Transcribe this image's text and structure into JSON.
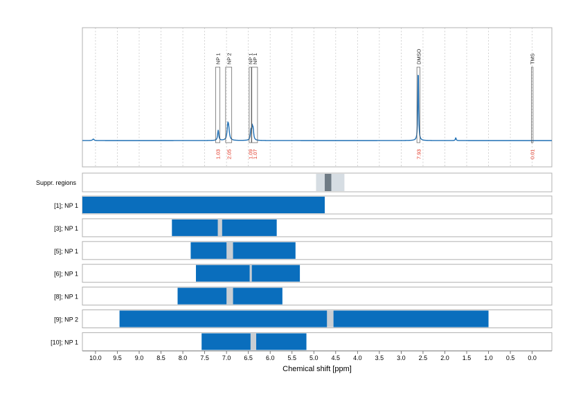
{
  "chart_data": {
    "type": "nmr-spectrum-with-range-bars",
    "xlabel": "Chemical shift [ppm]",
    "xlim": [
      10.3,
      -0.45
    ],
    "x_ticks": [
      "10.0",
      "9.5",
      "9.0",
      "8.5",
      "8.0",
      "7.5",
      "7.0",
      "6.5",
      "6.0",
      "5.5",
      "5.0",
      "4.5",
      "4.0",
      "3.5",
      "3.0",
      "2.5",
      "2.0",
      "1.5",
      "1.0",
      "0.5",
      "0.0"
    ],
    "x_tick_values": [
      10.0,
      9.5,
      9.0,
      8.5,
      8.0,
      7.5,
      7.0,
      6.5,
      6.0,
      5.5,
      5.0,
      4.5,
      4.0,
      3.5,
      3.0,
      2.5,
      2.0,
      1.5,
      1.0,
      0.5,
      0.0
    ],
    "grid": true,
    "colors": {
      "spectrum": "#1f6fb4",
      "bar": "#0a6ebd",
      "suppression_light": "#d6dde3",
      "suppression_dark": "#6f7b85",
      "gap": "#c9ced3",
      "integral_text": "#e0301e",
      "frame": "#b0b0b0"
    },
    "spectrum": {
      "peaks": [
        {
          "ppm": 7.19,
          "height": 0.14,
          "width": 0.015
        },
        {
          "ppm": 6.97,
          "height": 0.18,
          "width": 0.02
        },
        {
          "ppm": 6.95,
          "height": 0.12,
          "width": 0.02
        },
        {
          "ppm": 6.44,
          "height": 0.13,
          "width": 0.015
        },
        {
          "ppm": 6.41,
          "height": 0.14,
          "width": 0.015
        },
        {
          "ppm": 6.39,
          "height": 0.12,
          "width": 0.015
        },
        {
          "ppm": 2.61,
          "height": 1.0,
          "width": 0.01
        },
        {
          "ppm": 1.75,
          "height": 0.04,
          "width": 0.01
        },
        {
          "ppm": 10.05,
          "height": 0.02,
          "width": 0.02
        }
      ]
    },
    "signal_boxes": [
      {
        "label": "NP 1",
        "from": 7.25,
        "to": 7.15,
        "integral": "1.03"
      },
      {
        "label": "NP 2",
        "from": 7.02,
        "to": 6.88,
        "integral": "2.05"
      },
      {
        "label": "NP 1",
        "from": 6.48,
        "to": 6.43,
        "integral": "1.09"
      },
      {
        "label": "NP 1",
        "from": 6.42,
        "to": 6.29,
        "integral": "1.07"
      },
      {
        "label": "DMSO",
        "from": 2.64,
        "to": 2.57,
        "integral": "7.93"
      },
      {
        "label": "TMS",
        "from": 0.02,
        "to": -0.02,
        "integral": "0.01"
      }
    ],
    "suppression": {
      "label": "Suppr. regions",
      "outer": [
        4.95,
        4.3
      ],
      "inner": [
        4.75,
        4.6
      ]
    },
    "range_rows": [
      {
        "label": "[1]; NP 1",
        "start": 10.3,
        "end": 4.75,
        "gap": null
      },
      {
        "label": "[3]; NP 1",
        "start": 8.25,
        "end": 5.85,
        "gap": [
          7.2,
          7.1
        ]
      },
      {
        "label": "[5]; NP 1",
        "start": 7.82,
        "end": 5.42,
        "gap": [
          7.0,
          6.85
        ]
      },
      {
        "label": "[6]; NP 1",
        "start": 7.7,
        "end": 5.32,
        "gap": [
          6.47,
          6.42
        ]
      },
      {
        "label": "[8]; NP 1",
        "start": 8.12,
        "end": 5.72,
        "gap": [
          7.0,
          6.85
        ]
      },
      {
        "label": "[9]; NP 2",
        "start": 9.45,
        "end": 1.0,
        "gap": [
          4.7,
          4.55
        ]
      },
      {
        "label": "[10]; NP 1",
        "start": 7.57,
        "end": 5.17,
        "gap": [
          6.45,
          6.32
        ]
      }
    ]
  }
}
